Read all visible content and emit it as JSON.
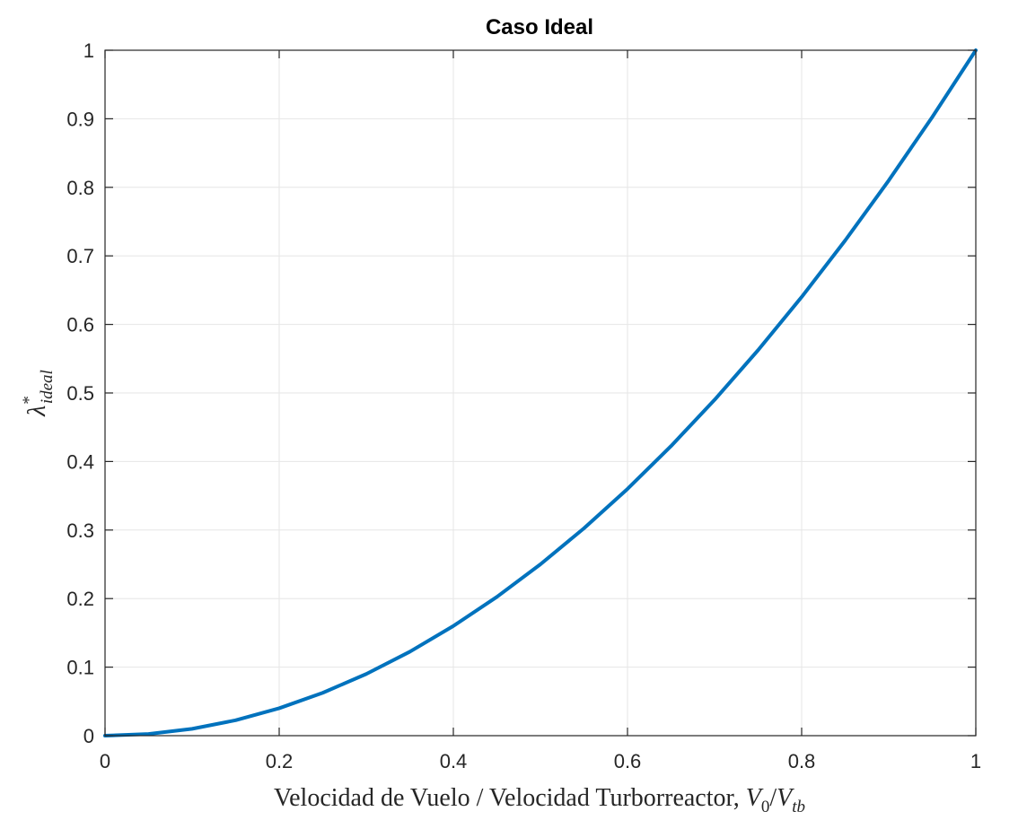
{
  "chart_data": {
    "type": "line",
    "title": "Caso Ideal",
    "xlabel": "Velocidad de Vuelo / Velocidad Turborreactor, ",
    "xlabel_math": {
      "V": "V",
      "sub0": "0",
      "slash": "/",
      "V2": "V",
      "subtb": "tb"
    },
    "ylabel_math": {
      "lambda": "λ",
      "sup": "*",
      "sub": "ideal"
    },
    "xlim": [
      0,
      1
    ],
    "ylim": [
      0,
      1
    ],
    "xticks": [
      0,
      0.2,
      0.4,
      0.6,
      0.8,
      1
    ],
    "xtick_labels": [
      "0",
      "0.2",
      "0.4",
      "0.6",
      "0.8",
      "1"
    ],
    "yticks": [
      0,
      0.1,
      0.2,
      0.3,
      0.4,
      0.5,
      0.6,
      0.7,
      0.8,
      0.9,
      1
    ],
    "ytick_labels": [
      "0",
      "0.1",
      "0.2",
      "0.3",
      "0.4",
      "0.5",
      "0.6",
      "0.7",
      "0.8",
      "0.9",
      "1"
    ],
    "grid": true,
    "line_color": "#0072bd",
    "series": [
      {
        "x": [
          0,
          0.05,
          0.1,
          0.15,
          0.2,
          0.25,
          0.3,
          0.35,
          0.4,
          0.45,
          0.5,
          0.55,
          0.6,
          0.65,
          0.7,
          0.75,
          0.8,
          0.85,
          0.9,
          0.95,
          1
        ],
        "y": [
          0,
          0.0025,
          0.01,
          0.0225,
          0.04,
          0.0625,
          0.09,
          0.1225,
          0.16,
          0.2025,
          0.25,
          0.3025,
          0.36,
          0.4225,
          0.49,
          0.5625,
          0.64,
          0.7225,
          0.81,
          0.9025,
          1
        ]
      }
    ]
  }
}
